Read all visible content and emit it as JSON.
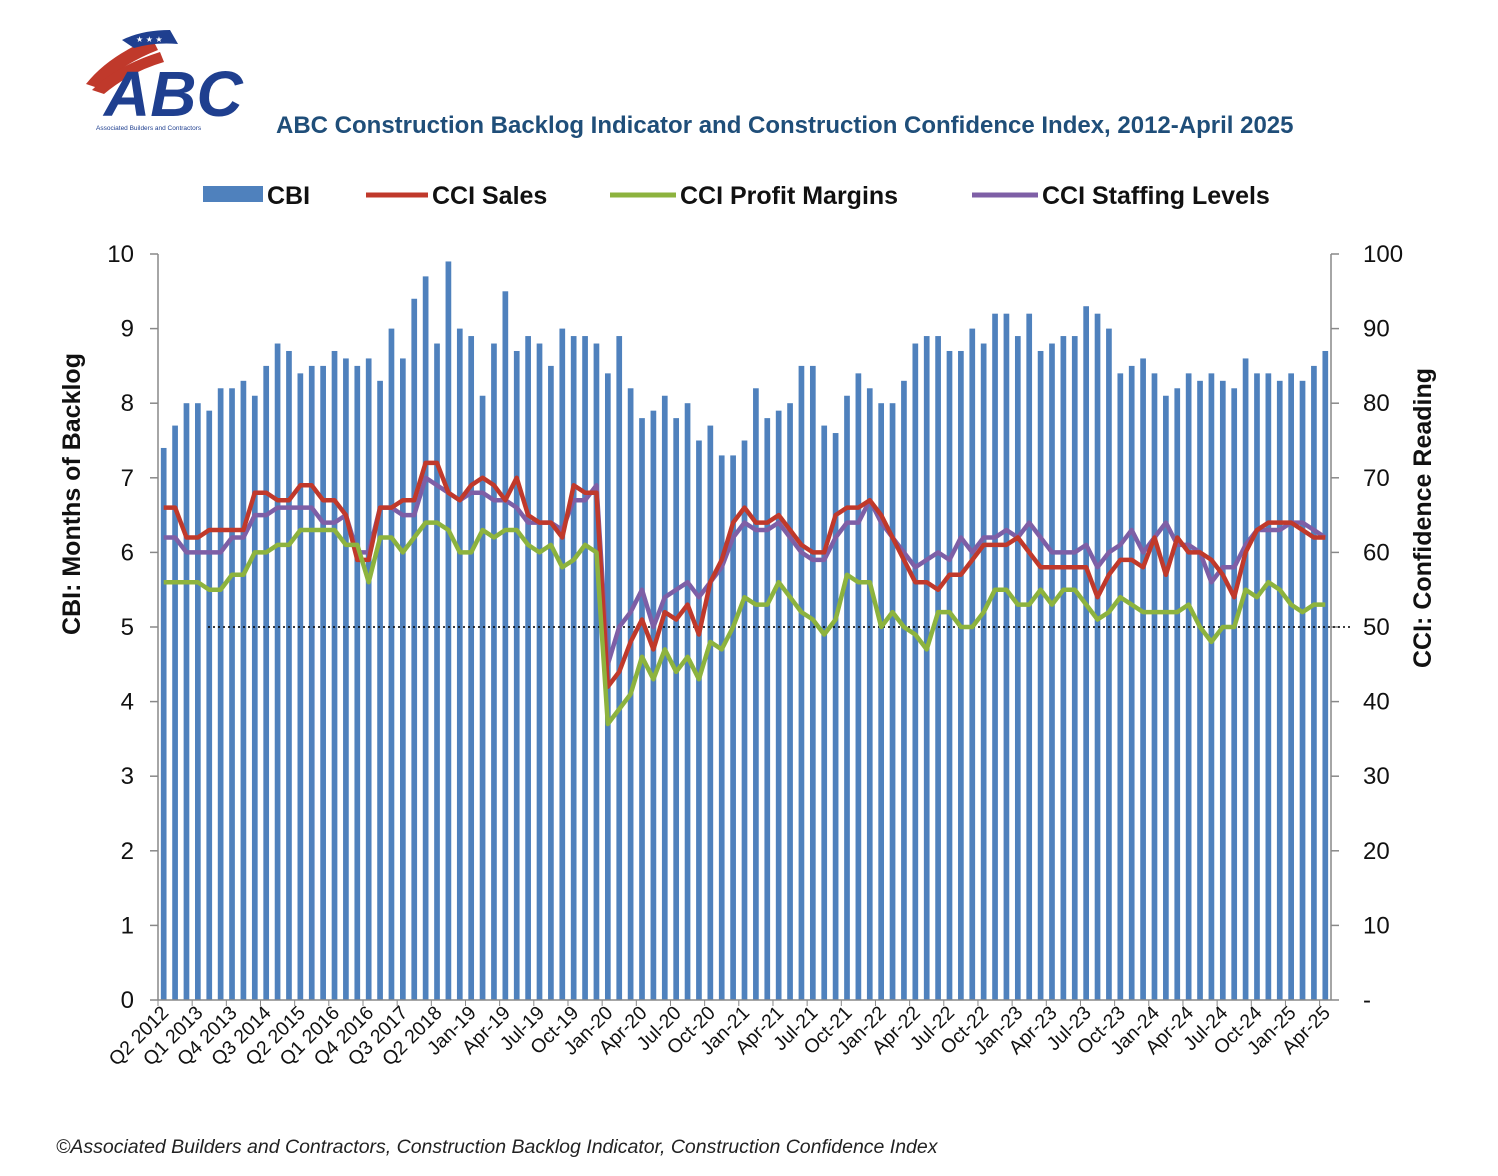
{
  "logo": {
    "name": "abc-logo",
    "text": "ABC",
    "subtext": "Associated Builders and Contractors"
  },
  "footer": "©Associated Builders and Contractors, Construction Backlog Indicator, Construction Confidence Index",
  "colors": {
    "cbi": "#4f81bd",
    "sales": "#c0392b",
    "profit": "#8db33e",
    "staffing": "#7e5fa6",
    "title": "#1f4e79"
  },
  "chart_data": {
    "type": "bar",
    "title": "ABC Construction Backlog Indicator and Construction Confidence Index, 2012-April 2025",
    "ylabel": "CBI: Months of Backlog",
    "y2label": "CCI: Confidence Reading",
    "ylim": [
      0,
      10
    ],
    "y2lim": [
      0,
      100
    ],
    "yticks": [
      "0",
      "1",
      "2",
      "3",
      "4",
      "5",
      "6",
      "7",
      "8",
      "9",
      "10"
    ],
    "y2ticks": [
      "-",
      "10",
      "20",
      "30",
      "40",
      "50",
      "60",
      "70",
      "80",
      "90",
      "100"
    ],
    "reference_line": 50,
    "legend_position": "top",
    "x_tick_labels": [
      "Q2 2012",
      "Q1 2013",
      "Q4 2013",
      "Q3 2014",
      "Q2 2015",
      "Q1 2016",
      "Q4 2016",
      "Q3 2017",
      "Q2 2018",
      "Jan-19",
      "Apr-19",
      "Jul-19",
      "Oct-19",
      "Jan-20",
      "Apr-20",
      "Jul-20",
      "Oct-20",
      "Jan-21",
      "Apr-21",
      "Jul-21",
      "Oct-21",
      "Jan-22",
      "Apr-22",
      "Jul-22",
      "Oct-22",
      "Jan-23",
      "Apr-23",
      "Jul-23",
      "Oct-23",
      "Jan-24",
      "Apr-24",
      "Jul-24",
      "Oct-24",
      "Jan-25",
      "Apr-25"
    ],
    "series": [
      {
        "name": "CBI",
        "type": "bar",
        "axis": "left",
        "values": [
          7.4,
          7.7,
          8.0,
          8.0,
          7.9,
          8.2,
          8.2,
          8.3,
          8.1,
          8.5,
          8.8,
          8.7,
          8.4,
          8.5,
          8.5,
          8.7,
          8.6,
          8.5,
          8.6,
          8.3,
          9.0,
          8.6,
          9.4,
          9.7,
          8.8,
          9.9,
          9.0,
          8.9,
          8.1,
          8.8,
          9.5,
          8.7,
          8.9,
          8.8,
          8.5,
          9.0,
          8.9,
          8.9,
          8.8,
          8.4,
          8.9,
          8.2,
          7.8,
          7.9,
          8.1,
          7.8,
          8.0,
          7.5,
          7.7,
          7.3,
          7.3,
          7.5,
          8.2,
          7.8,
          7.9,
          8.0,
          8.5,
          8.5,
          7.7,
          7.6,
          8.1,
          8.4,
          8.2,
          8.0,
          8.0,
          8.3,
          8.8,
          8.9,
          8.9,
          8.7,
          8.7,
          9.0,
          8.8,
          9.2,
          9.2,
          8.9,
          9.2,
          8.7,
          8.8,
          8.9,
          8.9,
          9.3,
          9.2,
          9.0,
          8.4,
          8.5,
          8.6,
          8.4,
          8.1,
          8.2,
          8.4,
          8.3,
          8.4,
          8.3,
          8.2,
          8.6,
          8.4,
          8.4,
          8.3,
          8.4,
          8.3,
          8.5,
          8.7
        ]
      },
      {
        "name": "CCI Sales",
        "type": "line",
        "axis": "right",
        "values": [
          66,
          66,
          62,
          62,
          63,
          63,
          63,
          63,
          68,
          68,
          67,
          67,
          69,
          69,
          67,
          67,
          65,
          59,
          59,
          66,
          66,
          67,
          67,
          72,
          72,
          68,
          67,
          69,
          70,
          69,
          67,
          70,
          65,
          64,
          64,
          62,
          69,
          68,
          68,
          42,
          44,
          48,
          51,
          47,
          52,
          51,
          53,
          49,
          56,
          59,
          64,
          66,
          64,
          64,
          65,
          63,
          61,
          60,
          60,
          65,
          66,
          66,
          67,
          65,
          62,
          59,
          56,
          56,
          55,
          57,
          57,
          59,
          61,
          61,
          61,
          62,
          60,
          58,
          58,
          58,
          58,
          58,
          54,
          57,
          59,
          59,
          58,
          62,
          57,
          62,
          60,
          60,
          59,
          57,
          54,
          60,
          63,
          64,
          64,
          64,
          63,
          62,
          62
        ]
      },
      {
        "name": "CCI Profit Margins",
        "type": "line",
        "axis": "right",
        "values": [
          56,
          56,
          56,
          56,
          55,
          55,
          57,
          57,
          60,
          60,
          61,
          61,
          63,
          63,
          63,
          63,
          61,
          61,
          56,
          62,
          62,
          60,
          62,
          64,
          64,
          63,
          60,
          60,
          63,
          62,
          63,
          63,
          61,
          60,
          61,
          58,
          59,
          61,
          60,
          37,
          39,
          41,
          46,
          43,
          47,
          44,
          46,
          43,
          48,
          47,
          50,
          54,
          53,
          53,
          56,
          54,
          52,
          51,
          49,
          51,
          57,
          56,
          56,
          50,
          52,
          50,
          49,
          47,
          52,
          52,
          50,
          50,
          52,
          55,
          55,
          53,
          53,
          55,
          53,
          55,
          55,
          53,
          51,
          52,
          54,
          53,
          52,
          52,
          52,
          52,
          53,
          50,
          48,
          50,
          50,
          55,
          54,
          56,
          55,
          53,
          52,
          53,
          53
        ]
      },
      {
        "name": "CCI Staffing Levels",
        "type": "line",
        "axis": "right",
        "values": [
          62,
          62,
          60,
          60,
          60,
          60,
          62,
          62,
          65,
          65,
          66,
          66,
          66,
          66,
          64,
          64,
          65,
          60,
          60,
          66,
          66,
          65,
          65,
          70,
          69,
          68,
          67,
          68,
          68,
          67,
          67,
          66,
          64,
          64,
          64,
          63,
          67,
          67,
          69,
          45,
          50,
          52,
          55,
          50,
          54,
          55,
          56,
          54,
          56,
          58,
          62,
          64,
          63,
          63,
          64,
          62,
          60,
          59,
          59,
          62,
          64,
          64,
          67,
          64,
          62,
          60,
          58,
          59,
          60,
          59,
          62,
          60,
          62,
          62,
          63,
          62,
          64,
          62,
          60,
          60,
          60,
          61,
          58,
          60,
          61,
          63,
          60,
          62,
          64,
          61,
          61,
          60,
          56,
          58,
          58,
          61,
          63,
          63,
          63,
          64,
          64,
          63,
          62
        ]
      }
    ]
  }
}
